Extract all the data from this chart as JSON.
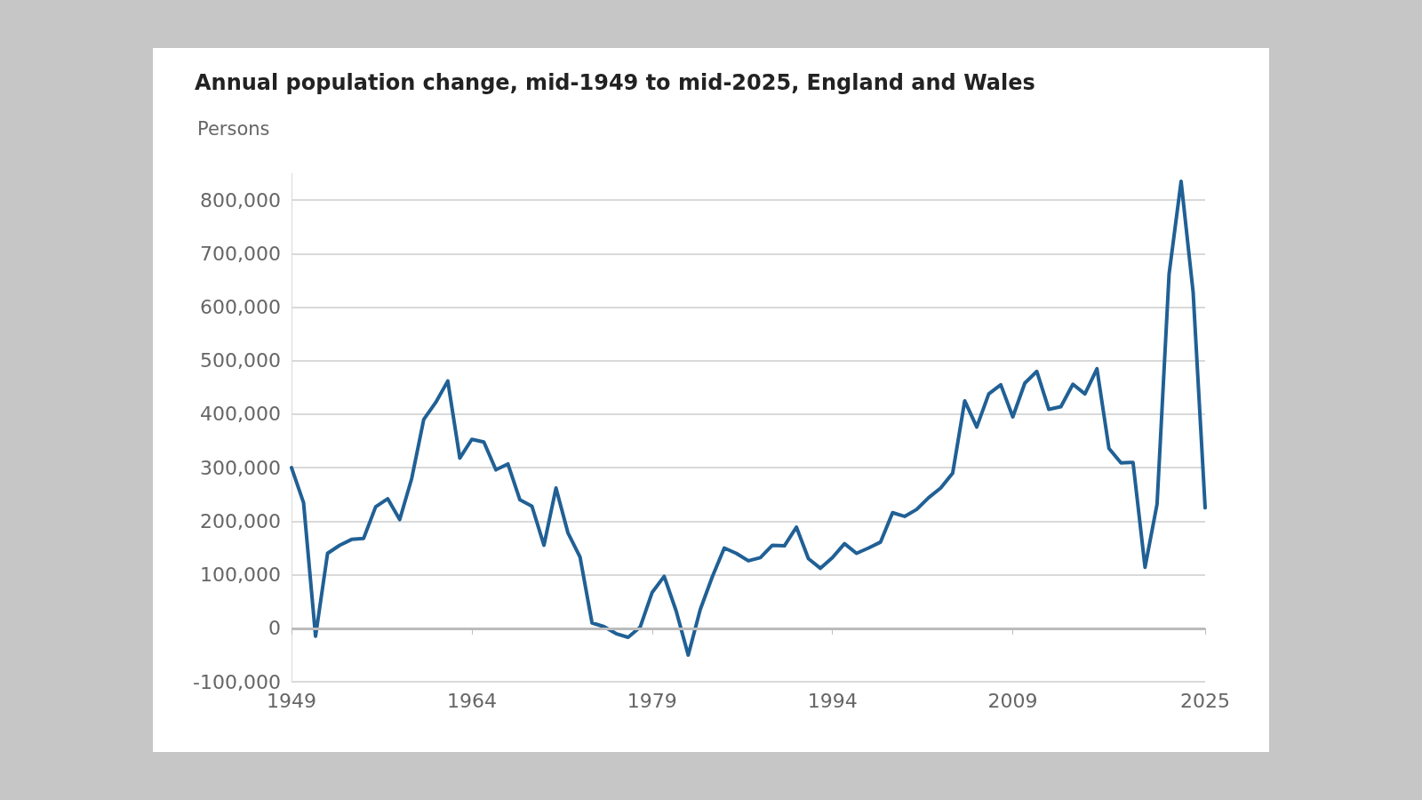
{
  "chart_data": {
    "type": "line",
    "title": "Annual population change, mid-1949 to mid-2025, England and Wales",
    "ylabel": "Persons",
    "x": [
      1949,
      1950,
      1951,
      1952,
      1953,
      1954,
      1955,
      1956,
      1957,
      1958,
      1959,
      1960,
      1961,
      1962,
      1963,
      1964,
      1965,
      1966,
      1967,
      1968,
      1969,
      1970,
      1971,
      1972,
      1973,
      1974,
      1975,
      1976,
      1977,
      1978,
      1979,
      1980,
      1981,
      1982,
      1983,
      1984,
      1985,
      1986,
      1987,
      1988,
      1989,
      1990,
      1991,
      1992,
      1993,
      1994,
      1995,
      1996,
      1997,
      1998,
      1999,
      2000,
      2001,
      2002,
      2003,
      2004,
      2005,
      2006,
      2007,
      2008,
      2009,
      2010,
      2011,
      2012,
      2013,
      2014,
      2015,
      2016,
      2017,
      2018,
      2019,
      2020,
      2021,
      2022,
      2023,
      2024,
      2025
    ],
    "series": [
      {
        "color": "#206095",
        "values": [
          300000,
          235000,
          -15000,
          140000,
          155000,
          166000,
          168000,
          227000,
          242000,
          203000,
          280000,
          390000,
          422000,
          462000,
          318000,
          353000,
          348000,
          296000,
          307000,
          240000,
          228000,
          155000,
          262000,
          178000,
          133000,
          10000,
          3000,
          -10000,
          -17000,
          2000,
          67000,
          97000,
          32000,
          -50000,
          35000,
          96000,
          150000,
          140000,
          126000,
          132000,
          155000,
          154000,
          189000,
          130000,
          112000,
          132000,
          158000,
          140000,
          150000,
          161000,
          216000,
          209000,
          222000,
          244000,
          262000,
          290000,
          425000,
          376000,
          438000,
          455000,
          395000,
          458000,
          480000,
          409000,
          414000,
          456000,
          438000,
          485000,
          336000,
          309000,
          310000,
          114000,
          232000,
          662000,
          835000,
          628000,
          225000
        ]
      }
    ],
    "xlim": [
      1949,
      2025
    ],
    "xticks": [
      1949,
      1964,
      1979,
      1994,
      2009,
      2025
    ],
    "ylim": [
      -100000,
      850000
    ],
    "yticks": [
      {
        "value": -100000,
        "label": "-100,000"
      },
      0,
      {
        "value": 100000,
        "label": "100,000"
      },
      {
        "value": 200000,
        "label": "200,000"
      },
      {
        "value": 300000,
        "label": "300,000"
      },
      {
        "value": 400000,
        "label": "400,000"
      },
      {
        "value": 500000,
        "label": "500,000"
      },
      {
        "value": 600000,
        "label": "600,000"
      },
      {
        "value": 700000,
        "label": "700,000"
      },
      {
        "value": 800000,
        "label": "800,000"
      }
    ],
    "ref_lines": [
      {
        "axis": "y",
        "value": 0,
        "label": null,
        "color": "#bbbbbb"
      }
    ],
    "grid": "y",
    "marker": "none",
    "line_style": "solid"
  }
}
